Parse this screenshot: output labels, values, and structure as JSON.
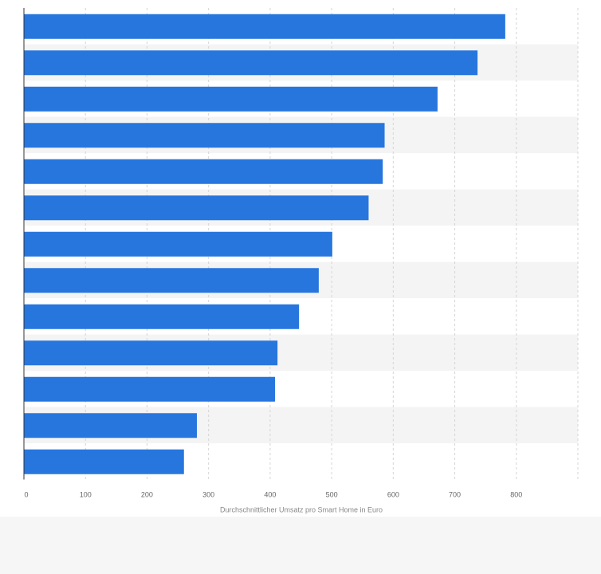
{
  "chart_data": {
    "type": "bar",
    "orientation": "horizontal",
    "categories": [
      "",
      "",
      "",
      "",
      "",
      "",
      "",
      "",
      "",
      "",
      "",
      "",
      ""
    ],
    "values": [
      782,
      737,
      672,
      586,
      583,
      560,
      501,
      479,
      447,
      412,
      408,
      281,
      260
    ],
    "xlabel": "Durchschnittlicher Umsatz pro Smart Home in Euro",
    "xlim": [
      0,
      900
    ],
    "xticks": [
      0,
      100,
      200,
      300,
      400,
      500,
      600,
      700,
      800
    ],
    "grid": true,
    "legend": "none",
    "colors": {
      "bar": "#2776DE",
      "band": "#F4F4F4",
      "grid": "#D5D5D5",
      "axis": "#333333"
    }
  }
}
